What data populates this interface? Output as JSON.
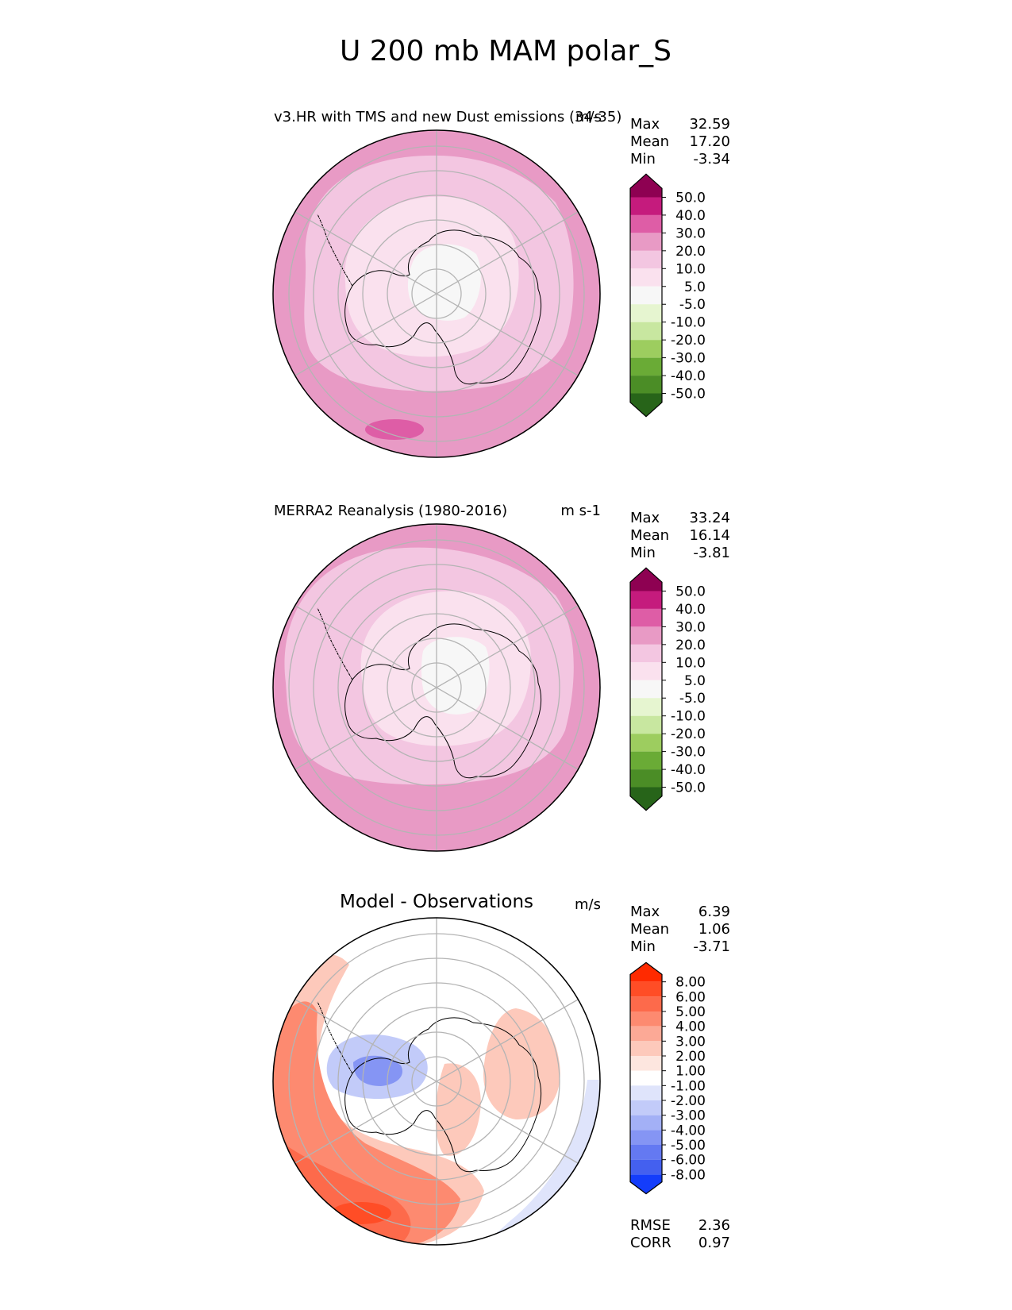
{
  "figure_title": "U 200 mb MAM polar_S",
  "chart_data": [
    {
      "type": "polar-contour-map",
      "title": "v3.HR with TMS and new Dust emissions (34-35)",
      "units": "m/s",
      "stats": {
        "labels": [
          "Max",
          "Mean",
          "Min"
        ],
        "values": [
          "32.59",
          "17.20",
          "-3.34"
        ]
      },
      "colorbar": {
        "ticks": [
          "50.0",
          "40.0",
          "30.0",
          "20.0",
          "10.0",
          "5.0",
          "-5.0",
          "-10.0",
          "-20.0",
          "-30.0",
          "-40.0",
          "-50.0"
        ],
        "colors": [
          "#8e0152",
          "#c51b7d",
          "#de5da6",
          "#e89ac5",
          "#f3c6e1",
          "#fae1ee",
          "#f7f7f7",
          "#e6f5d0",
          "#c8e7a0",
          "#9dcd5f",
          "#6aab36",
          "#4b8d26",
          "#276419"
        ]
      },
      "bands": [
        {
          "range": "30.0 to 40.0",
          "color": "#de5da6",
          "region": "Pacific / Indian outer ring"
        },
        {
          "range": "20.0 to 30.0",
          "color": "#e89ac5",
          "region": "outer ring"
        },
        {
          "range": "10.0 to 20.0",
          "color": "#f3c6e1",
          "region": "middle ring"
        },
        {
          "range": "5.0 to 10.0",
          "color": "#fae1ee",
          "region": "inner ring"
        },
        {
          "range": "-5.0 to 5.0",
          "color": "#f7f7f7",
          "region": "polar core"
        }
      ],
      "extras": null
    },
    {
      "type": "polar-contour-map",
      "title": "MERRA2 Reanalysis (1980-2016)",
      "units": "m s-1",
      "stats": {
        "labels": [
          "Max",
          "Mean",
          "Min"
        ],
        "values": [
          "33.24",
          "16.14",
          "-3.81"
        ]
      },
      "colorbar": {
        "ticks": [
          "50.0",
          "40.0",
          "30.0",
          "20.0",
          "10.0",
          "5.0",
          "-5.0",
          "-10.0",
          "-20.0",
          "-30.0",
          "-40.0",
          "-50.0"
        ],
        "colors": [
          "#8e0152",
          "#c51b7d",
          "#de5da6",
          "#e89ac5",
          "#f3c6e1",
          "#fae1ee",
          "#f7f7f7",
          "#e6f5d0",
          "#c8e7a0",
          "#9dcd5f",
          "#6aab36",
          "#4b8d26",
          "#276419"
        ]
      },
      "bands": [
        {
          "range": "30.0 to 40.0",
          "color": "#de5da6",
          "region": "Indian Ocean sector"
        },
        {
          "range": "20.0 to 30.0",
          "color": "#e89ac5",
          "region": "outer ring"
        },
        {
          "range": "10.0 to 20.0",
          "color": "#f3c6e1",
          "region": "middle ring"
        },
        {
          "range": "5.0 to 10.0",
          "color": "#fae1ee",
          "region": "inner ring"
        },
        {
          "range": "-5.0 to 5.0",
          "color": "#f7f7f7",
          "region": "polar core"
        }
      ],
      "extras": null
    },
    {
      "type": "polar-contour-map",
      "title": "Model - Observations",
      "units": "m/s",
      "stats": {
        "labels": [
          "Max",
          "Mean",
          "Min"
        ],
        "values": [
          "6.39",
          "1.06",
          "-3.71"
        ]
      },
      "colorbar": {
        "ticks": [
          "8.00",
          "6.00",
          "5.00",
          "4.00",
          "3.00",
          "2.00",
          "1.00",
          "-1.00",
          "-2.00",
          "-3.00",
          "-4.00",
          "-5.00",
          "-6.00",
          "-8.00"
        ],
        "colors": [
          "#ff2a00",
          "#ff4d26",
          "#fd6a4b",
          "#fd8a70",
          "#fca996",
          "#fdc9bb",
          "#fde6df",
          "#ffffff",
          "#dfe4fb",
          "#c2cbf9",
          "#a3b0f6",
          "#8595f4",
          "#6479f2",
          "#4460ef",
          "#143dfb"
        ]
      },
      "bands": [
        {
          "range": "5.00 to 6.00",
          "color": "#ff4d26",
          "region": "Pacific sector"
        },
        {
          "range": "3.00 to 5.00",
          "color": "#fd8a70",
          "region": "Pacific / west Atlantic"
        },
        {
          "range": "1.00 to 3.00",
          "color": "#fdc9bb",
          "region": "Indian Ocean / East Antarctica"
        },
        {
          "range": "-1.00 to 1.00",
          "color": "#ffffff",
          "region": "background"
        },
        {
          "range": "-4.00 to -1.00",
          "color": "#a3b0f6",
          "region": "Weddell Sea / Antarctic Peninsula"
        },
        {
          "range": "-3.00 to -1.00",
          "color": "#c2cbf9",
          "region": "Indian Ocean edge"
        }
      ],
      "extras": {
        "labels": [
          "RMSE",
          "CORR"
        ],
        "values": [
          "2.36",
          "0.97"
        ]
      }
    }
  ]
}
